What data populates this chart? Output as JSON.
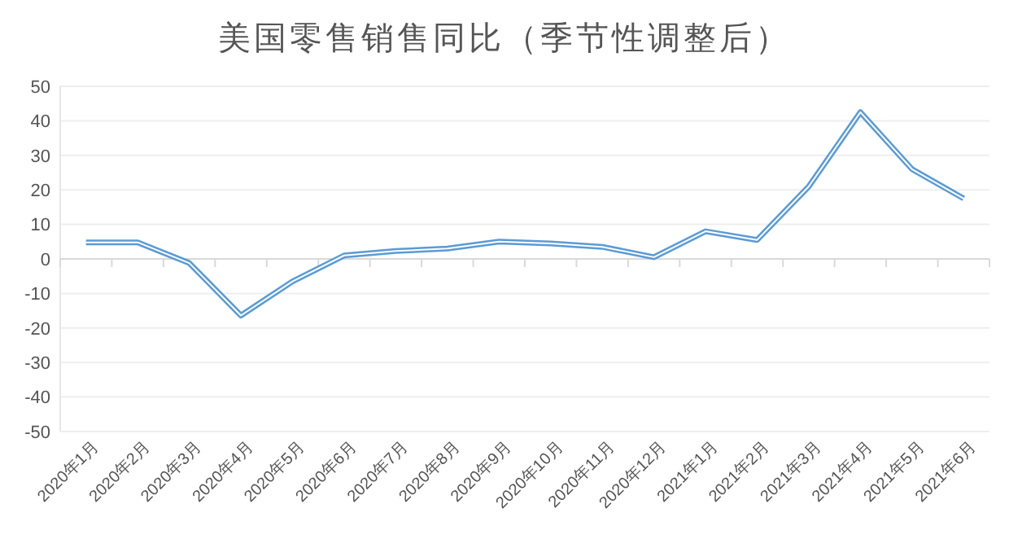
{
  "chart_data": {
    "type": "line",
    "title": "美国零售销售同比（季节性调整后）",
    "categories": [
      "2020年1月",
      "2020年2月",
      "2020年3月",
      "2020年4月",
      "2020年5月",
      "2020年6月",
      "2020年7月",
      "2020年8月",
      "2020年9月",
      "2020年10月",
      "2020年11月",
      "2020年12月",
      "2021年1月",
      "2021年2月",
      "2021年3月",
      "2021年4月",
      "2021年5月",
      "2021年6月"
    ],
    "series": [
      {
        "color": "#5b9bd5",
        "values": [
          4.8,
          4.8,
          -1.2,
          -16.4,
          -6.5,
          1,
          2.3,
          3,
          5,
          4.5,
          3.5,
          0.5,
          8,
          5.5,
          21,
          42.5,
          26,
          17.5
        ]
      }
    ],
    "ylim": [
      -50,
      50
    ],
    "yticks": [
      -50,
      -40,
      -30,
      -20,
      -10,
      0,
      10,
      20,
      30,
      40,
      50
    ],
    "grid": "y",
    "marker": "none",
    "line_style": "solid"
  }
}
